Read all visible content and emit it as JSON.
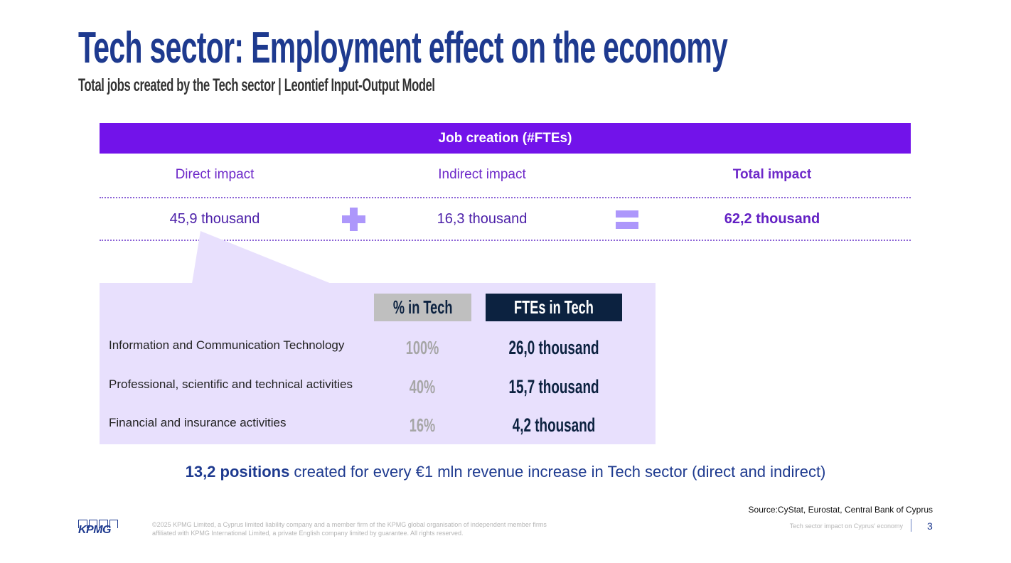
{
  "title": "Tech sector: Employment effect on the economy",
  "subtitle": "Total jobs created by the Tech sector | Leontief Input-Output Model",
  "table": {
    "header": "Job creation (#FTEs)",
    "columns": [
      {
        "label": "Direct impact",
        "value": "45,9 thousand"
      },
      {
        "label": "Indirect impact",
        "value": "16,3 thousand"
      },
      {
        "label": "Total impact",
        "value": "62,2 thousand"
      }
    ]
  },
  "breakdown": {
    "col_pct": "% in Tech",
    "col_fte": "FTEs in Tech",
    "rows": [
      {
        "label": "Information and Communication Technology",
        "pct": "100%",
        "fte": "26,0 thousand"
      },
      {
        "label": "Professional, scientific and technical activities",
        "pct": "40%",
        "fte": "15,7 thousand"
      },
      {
        "label": "Financial and insurance activities",
        "pct": "16%",
        "fte": "4,2 thousand"
      }
    ]
  },
  "note": {
    "bold": "13,2 positions",
    "rest": " created for every €1 mln revenue increase in Tech sector (direct and indirect)"
  },
  "source": "Source:CyStat, Eurostat, Central Bank of Cyprus",
  "footer": {
    "logo": "KPMG",
    "legal": "©2025 KPMG Limited, a Cyprus limited liability company and a member firm of the KPMG global organisation of independent member firms affiliated with KPMG International Limited, a private English company limited by guarantee. All rights reserved.",
    "doc_title": "Tech sector impact on Cyprus' economy",
    "page": "3"
  },
  "colors": {
    "purple": "#7213ea",
    "navy": "#1e3a8f",
    "panel": "#e8e0fd",
    "operator": "#ad97fb"
  }
}
